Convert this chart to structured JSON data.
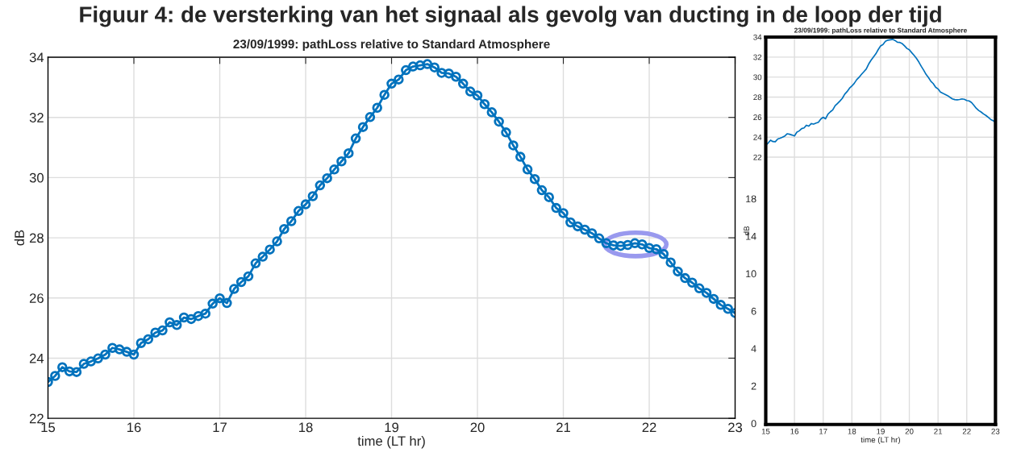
{
  "chart_data": [
    {
      "type": "line",
      "title": "Figuur 4: de versterking van het signaal als gevolg van ducting in de loop der tijd",
      "subtitle": "23/09/1999: pathLoss relative to Standard Atmosphere",
      "xlabel": "time (LT hr)",
      "ylabel": "dB",
      "xlim": [
        15,
        23
      ],
      "xticks": [
        15,
        16,
        17,
        18,
        19,
        20,
        21,
        22,
        23
      ],
      "ylim": [
        22,
        34
      ],
      "yticks": [
        22,
        24,
        26,
        28,
        30,
        32,
        34
      ],
      "grid": true,
      "marker": "circle",
      "line_style": "solid",
      "series": [
        {
          "color": "#0072bd",
          "x": [
            15.0,
            15.083,
            15.167,
            15.25,
            15.333,
            15.417,
            15.5,
            15.583,
            15.667,
            15.75,
            15.833,
            15.917,
            16.0,
            16.083,
            16.167,
            16.25,
            16.333,
            16.417,
            16.5,
            16.583,
            16.667,
            16.75,
            16.833,
            16.917,
            17.0,
            17.083,
            17.167,
            17.25,
            17.333,
            17.417,
            17.5,
            17.583,
            17.667,
            17.75,
            17.833,
            17.917,
            18.0,
            18.083,
            18.167,
            18.25,
            18.333,
            18.417,
            18.5,
            18.583,
            18.667,
            18.75,
            18.833,
            18.917,
            19.0,
            19.083,
            19.167,
            19.25,
            19.333,
            19.417,
            19.5,
            19.583,
            19.667,
            19.75,
            19.833,
            19.917,
            20.0,
            20.083,
            20.167,
            20.25,
            20.333,
            20.417,
            20.5,
            20.583,
            20.667,
            20.75,
            20.833,
            20.917,
            21.0,
            21.083,
            21.167,
            21.25,
            21.333,
            21.417,
            21.5,
            21.583,
            21.667,
            21.75,
            21.833,
            21.917,
            22.0,
            22.083,
            22.167,
            22.25,
            22.333,
            22.417,
            22.5,
            22.583,
            22.667,
            22.75,
            22.833,
            22.917,
            23.0
          ],
          "values": [
            23.21,
            23.41,
            23.7,
            23.56,
            23.54,
            23.81,
            23.89,
            23.99,
            24.12,
            24.34,
            24.29,
            24.21,
            24.12,
            24.5,
            24.63,
            24.85,
            24.92,
            25.19,
            25.1,
            25.35,
            25.3,
            25.4,
            25.48,
            25.81,
            25.99,
            25.83,
            26.3,
            26.53,
            26.72,
            27.15,
            27.37,
            27.61,
            27.88,
            28.29,
            28.55,
            28.89,
            29.11,
            29.38,
            29.74,
            29.98,
            30.27,
            30.54,
            30.81,
            31.3,
            31.68,
            32.01,
            32.32,
            32.75,
            33.12,
            33.26,
            33.57,
            33.69,
            33.73,
            33.77,
            33.66,
            33.48,
            33.46,
            33.35,
            33.12,
            32.86,
            32.73,
            32.44,
            32.17,
            31.86,
            31.5,
            31.07,
            30.69,
            30.27,
            29.95,
            29.58,
            29.35,
            28.99,
            28.82,
            28.51,
            28.38,
            28.27,
            28.15,
            27.98,
            27.82,
            27.75,
            27.73,
            27.76,
            27.82,
            27.78,
            27.66,
            27.62,
            27.46,
            27.18,
            26.88,
            26.66,
            26.51,
            26.32,
            26.17,
            25.97,
            25.77,
            25.64,
            25.5
          ]
        }
      ]
    },
    {
      "type": "line",
      "title": "23/09/1999: pathLoss relative to Standard Atmosphere",
      "xlabel": "time (LT hr)",
      "ylabel": "dB",
      "xlim": [
        15,
        23
      ],
      "xticks": [
        15,
        16,
        17,
        18,
        19,
        20,
        21,
        22,
        23
      ],
      "ylim": [
        -4.7,
        34
      ],
      "yticks": [
        22,
        24,
        26,
        28,
        30,
        32,
        34
      ],
      "grid": true,
      "marker": "none",
      "line_style": "solid",
      "annotations": [
        "18",
        "14",
        "10",
        "6",
        "4",
        "2",
        "0"
      ],
      "series": [
        {
          "color": "#0072bd",
          "x": [
            15.0,
            15.083,
            15.167,
            15.25,
            15.333,
            15.417,
            15.5,
            15.583,
            15.667,
            15.75,
            15.833,
            15.917,
            16.0,
            16.083,
            16.167,
            16.25,
            16.333,
            16.417,
            16.5,
            16.583,
            16.667,
            16.75,
            16.833,
            16.917,
            17.0,
            17.083,
            17.167,
            17.25,
            17.333,
            17.417,
            17.5,
            17.583,
            17.667,
            17.75,
            17.833,
            17.917,
            18.0,
            18.083,
            18.167,
            18.25,
            18.333,
            18.417,
            18.5,
            18.583,
            18.667,
            18.75,
            18.833,
            18.917,
            19.0,
            19.083,
            19.167,
            19.25,
            19.333,
            19.417,
            19.5,
            19.583,
            19.667,
            19.75,
            19.833,
            19.917,
            20.0,
            20.083,
            20.167,
            20.25,
            20.333,
            20.417,
            20.5,
            20.583,
            20.667,
            20.75,
            20.833,
            20.917,
            21.0,
            21.083,
            21.167,
            21.25,
            21.333,
            21.417,
            21.5,
            21.583,
            21.667,
            21.75,
            21.833,
            21.917,
            22.0,
            22.083,
            22.167,
            22.25,
            22.333,
            22.417,
            22.5,
            22.583,
            22.667,
            22.75,
            22.833,
            22.917,
            23.0
          ],
          "values": [
            23.21,
            23.41,
            23.7,
            23.56,
            23.54,
            23.81,
            23.89,
            23.99,
            24.12,
            24.34,
            24.29,
            24.21,
            24.12,
            24.5,
            24.63,
            24.85,
            24.92,
            25.19,
            25.1,
            25.35,
            25.3,
            25.4,
            25.48,
            25.81,
            25.99,
            25.83,
            26.3,
            26.53,
            26.72,
            27.15,
            27.37,
            27.61,
            27.88,
            28.29,
            28.55,
            28.89,
            29.11,
            29.38,
            29.74,
            29.98,
            30.27,
            30.54,
            30.81,
            31.3,
            31.68,
            32.01,
            32.32,
            32.75,
            33.12,
            33.26,
            33.57,
            33.69,
            33.73,
            33.77,
            33.66,
            33.48,
            33.46,
            33.35,
            33.12,
            32.86,
            32.73,
            32.44,
            32.17,
            31.86,
            31.5,
            31.07,
            30.69,
            30.27,
            29.95,
            29.58,
            29.35,
            28.99,
            28.82,
            28.51,
            28.38,
            28.27,
            28.15,
            27.98,
            27.82,
            27.75,
            27.73,
            27.76,
            27.82,
            27.78,
            27.66,
            27.62,
            27.46,
            27.18,
            26.88,
            26.66,
            26.51,
            26.32,
            26.17,
            25.97,
            25.77,
            25.64,
            25.5
          ]
        }
      ]
    }
  ]
}
